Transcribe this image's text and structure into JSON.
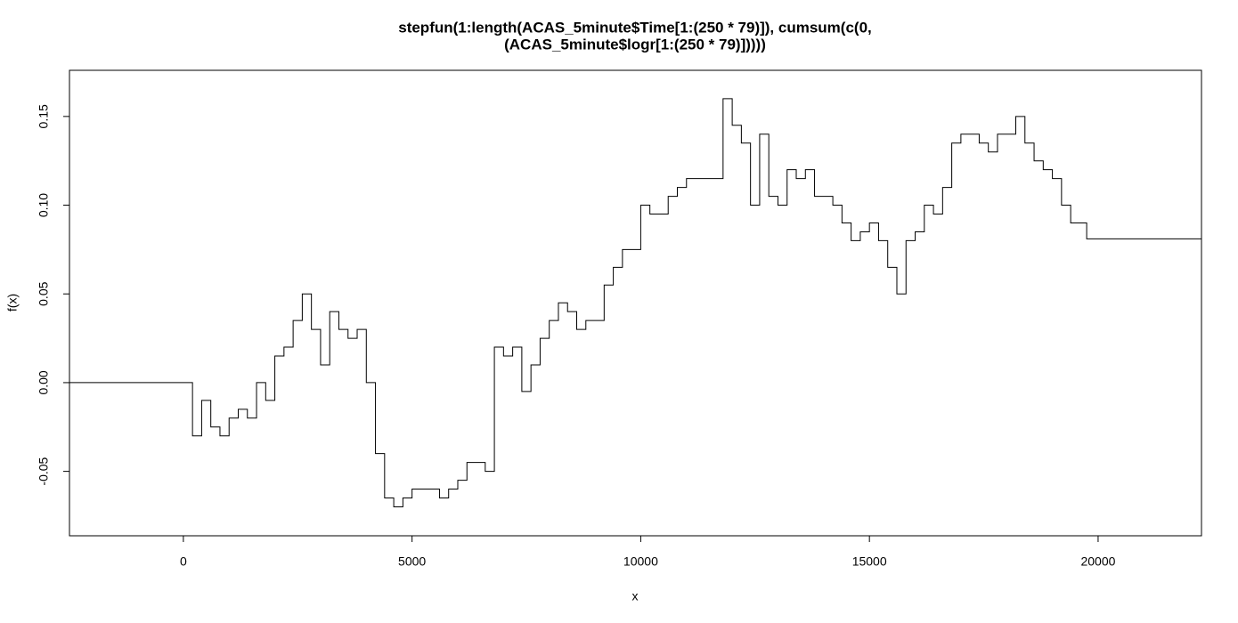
{
  "chart_data": {
    "type": "line",
    "title": [
      "stepfun(1:length(ACAS_5minute$Time[1:(250 * 79)]), cumsum(c(0,",
      "(ACAS_5minute$logr[1:(250 * 79)]))))"
    ],
    "xlabel": "x",
    "ylabel": "f(x)",
    "x": [
      0,
      200,
      400,
      600,
      800,
      1000,
      1200,
      1400,
      1600,
      1800,
      2000,
      2200,
      2400,
      2600,
      2800,
      3000,
      3200,
      3400,
      3600,
      3800,
      4000,
      4200,
      4400,
      4600,
      4800,
      5000,
      5200,
      5400,
      5600,
      5800,
      6000,
      6200,
      6400,
      6600,
      6800,
      7000,
      7200,
      7400,
      7600,
      7800,
      8000,
      8200,
      8400,
      8600,
      8800,
      9000,
      9200,
      9400,
      9600,
      9800,
      10000,
      10200,
      10400,
      10600,
      10800,
      11000,
      11200,
      11400,
      11600,
      11800,
      12000,
      12200,
      12400,
      12600,
      12800,
      13000,
      13200,
      13400,
      13600,
      13800,
      14000,
      14200,
      14400,
      14600,
      14800,
      15000,
      15200,
      15400,
      15600,
      15800,
      16000,
      16200,
      16400,
      16600,
      16800,
      17000,
      17200,
      17400,
      17600,
      17800,
      18000,
      18200,
      18400,
      18600,
      18800,
      19000,
      19200,
      19400,
      19600,
      19750
    ],
    "values": [
      0,
      -0.03,
      -0.01,
      -0.025,
      -0.03,
      -0.02,
      -0.015,
      -0.02,
      0,
      -0.01,
      0.015,
      0.02,
      0.035,
      0.05,
      0.03,
      0.01,
      0.04,
      0.03,
      0.025,
      0.03,
      0,
      -0.04,
      -0.065,
      -0.07,
      -0.065,
      -0.06,
      -0.06,
      -0.06,
      -0.065,
      -0.06,
      -0.055,
      -0.045,
      -0.045,
      -0.05,
      0.02,
      0.015,
      0.02,
      -0.005,
      0.01,
      0.025,
      0.035,
      0.045,
      0.04,
      0.03,
      0.035,
      0.035,
      0.055,
      0.065,
      0.075,
      0.075,
      0.1,
      0.095,
      0.095,
      0.105,
      0.11,
      0.115,
      0.115,
      0.115,
      0.115,
      0.16,
      0.145,
      0.135,
      0.1,
      0.14,
      0.105,
      0.1,
      0.12,
      0.115,
      0.12,
      0.105,
      0.105,
      0.1,
      0.09,
      0.08,
      0.085,
      0.09,
      0.08,
      0.065,
      0.05,
      0.08,
      0.085,
      0.1,
      0.095,
      0.11,
      0.135,
      0.14,
      0.14,
      0.135,
      0.13,
      0.14,
      0.14,
      0.15,
      0.135,
      0.125,
      0.12,
      0.115,
      0.1,
      0.09,
      0.09,
      0.081
    ],
    "color": "#000000",
    "xlim": [
      -2490,
      22260
    ],
    "xticks": [
      0,
      5000,
      10000,
      15000,
      20000
    ],
    "ylim": [
      -0.0863,
      0.176
    ],
    "yticks": [
      -0.05,
      {
        "value": 0,
        "label": "0.00"
      },
      0.05,
      {
        "value": 0.1,
        "label": "0.10"
      },
      0.15
    ]
  }
}
